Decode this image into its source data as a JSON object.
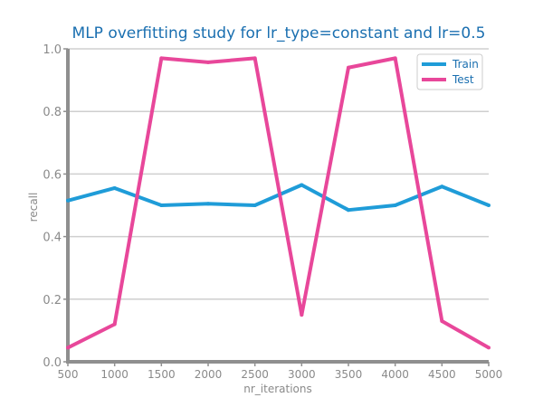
{
  "chart_data": {
    "type": "line",
    "title": "MLP overfitting study for lr_type=constant and lr=0.5",
    "xlabel": "nr_iterations",
    "ylabel": "recall",
    "x": [
      500,
      1000,
      1500,
      2000,
      2500,
      3000,
      3500,
      4000,
      4500,
      5000
    ],
    "x_tick_labels": [
      "500",
      "1000",
      "1500",
      "2000",
      "2500",
      "3000",
      "3500",
      "4000",
      "4500",
      "5000"
    ],
    "y_tick_labels": [
      "0.0",
      "0.2",
      "0.4",
      "0.6",
      "0.8",
      "1.0"
    ],
    "y_ticks": [
      0,
      0.2,
      0.4,
      0.6,
      0.8,
      1.0
    ],
    "xlim": [
      500,
      5000
    ],
    "ylim": [
      0,
      1.0
    ],
    "grid": "horizontal",
    "legend_position": "top-right",
    "series": [
      {
        "name": "Train",
        "color": "#1f9cd8",
        "values": [
          0.515,
          0.555,
          0.5,
          0.505,
          0.5,
          0.565,
          0.485,
          0.5,
          0.56,
          0.5
        ]
      },
      {
        "name": "Test",
        "color": "#e8479a",
        "values": [
          0.045,
          0.12,
          0.97,
          0.957,
          0.97,
          0.15,
          0.94,
          0.97,
          0.13,
          0.045
        ]
      }
    ]
  }
}
